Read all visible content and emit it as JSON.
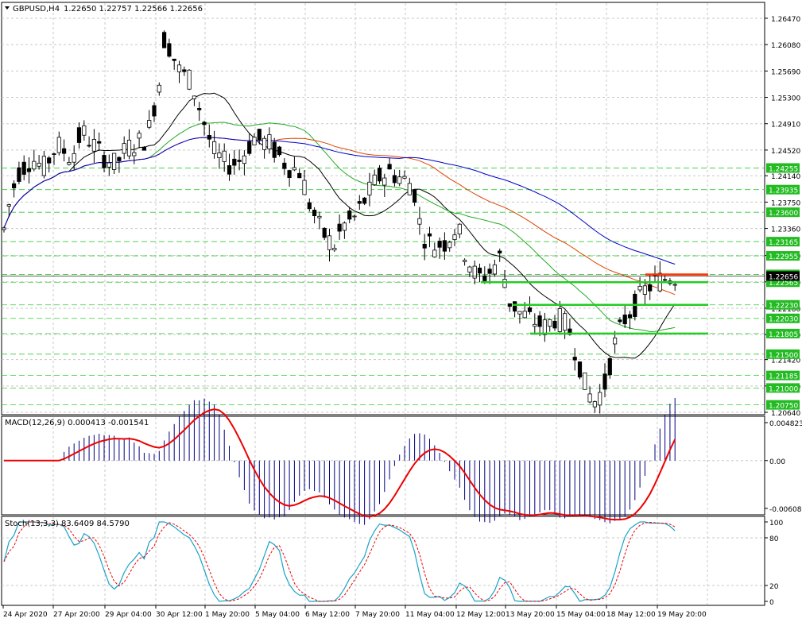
{
  "main_panel": {
    "symbol": "GBPUSD,H4",
    "ohlc": "1.22650 1.22757 1.22566 1.22656",
    "price_ticks": [
      "1.26470",
      "1.26080",
      "1.25690",
      "1.25300",
      "1.24910",
      "1.24520",
      "1.24140",
      "1.23750",
      "1.23360",
      "1.22960",
      "1.22570",
      "1.22180",
      "1.21790",
      "1.21420",
      "1.21030",
      "1.20640"
    ],
    "level_labels": [
      {
        "text": "1.24255",
        "bg": "#22bb22"
      },
      {
        "text": "1.23935",
        "bg": "#22bb22"
      },
      {
        "text": "1.23600",
        "bg": "#22bb22"
      },
      {
        "text": "1.23165",
        "bg": "#22bb22"
      },
      {
        "text": "1.22955",
        "bg": "#22bb22"
      },
      {
        "text": "1.22680",
        "bg": "#22bb22"
      },
      {
        "text": "1.22565",
        "bg": "#22bb22"
      },
      {
        "text": "1.22230",
        "bg": "#22bb22"
      },
      {
        "text": "1.22030",
        "bg": "#22bb22"
      },
      {
        "text": "1.21805",
        "bg": "#22bb22"
      },
      {
        "text": "1.21500",
        "bg": "#22bb22"
      },
      {
        "text": "1.21185",
        "bg": "#22bb22"
      },
      {
        "text": "1.21000",
        "bg": "#22bb22"
      },
      {
        "text": "1.20750",
        "bg": "#22bb22"
      }
    ],
    "current_price": "1.22656"
  },
  "macd_panel": {
    "label": "MACD(12,26,9) 0.000413 -0.001541",
    "ticks": [
      "0.004823",
      "0.00",
      "-0.006082"
    ]
  },
  "stoch_panel": {
    "label": "Stoch(13,3,3) 83.6409 84.5790",
    "ticks": [
      "100",
      "80",
      "20",
      "0"
    ]
  },
  "time_axis": [
    "24 Apr 2020",
    "27 Apr 20:00",
    "29 Apr 04:00",
    "30 Apr 12:00",
    "1 May 20:00",
    "5 May 04:00",
    "6 May 12:00",
    "7 May 20:00",
    "11 May 04:00",
    "12 May 12:00",
    "13 May 20:00",
    "15 May 04:00",
    "18 May 12:00",
    "19 May 20:00"
  ],
  "colors": {
    "ma_black": "#000000",
    "ma_green": "#22aa22",
    "ma_red": "#dd4400",
    "ma_blue": "#0000cc",
    "level_green": "#22cc22",
    "level_red": "#ff3300",
    "macd_hist": "#000080",
    "macd_signal": "#ee0000",
    "stoch_main": "#1aa3c8",
    "stoch_signal": "#ee0000",
    "grid": "#c8c8c8",
    "text": "#000000"
  }
}
